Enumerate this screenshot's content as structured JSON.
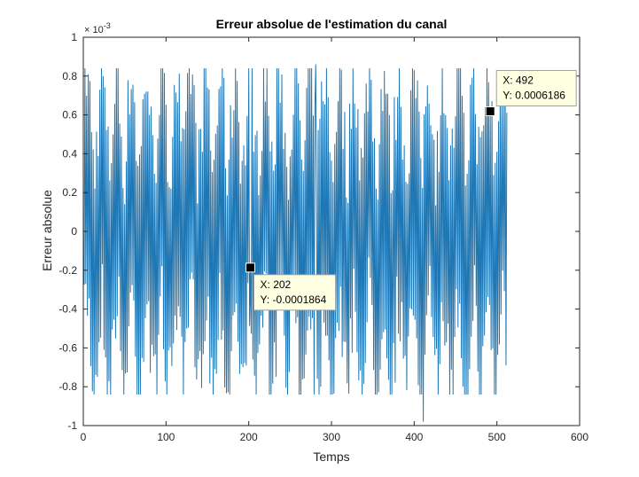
{
  "colors": {
    "line": "#1f77b4",
    "axis": "#262626",
    "tip_bg": "#ffffe1",
    "tip_border": "#a0a0a0",
    "marker": "#000000"
  },
  "chart_data": {
    "type": "line",
    "title": "Erreur absolue de l'estimation du canal",
    "xlabel": "Temps",
    "ylabel": "Erreur absolue",
    "y_exponent_label": "×10^{-3}",
    "y_exponent": {
      "base": "× 10",
      "power": "-3"
    },
    "xlim": [
      0,
      600
    ],
    "ylim": [
      -1,
      1
    ],
    "xticks": [
      0,
      100,
      200,
      300,
      400,
      500,
      600
    ],
    "yticks": [
      -1,
      -0.8,
      -0.6,
      -0.4,
      -0.2,
      0,
      0.2,
      0.4,
      0.6,
      0.8,
      1
    ],
    "xtick_labels": [
      "0",
      "100",
      "200",
      "300",
      "400",
      "500",
      "600"
    ],
    "ytick_labels": [
      "-1",
      "-0.8",
      "-0.6",
      "-0.4",
      "-0.2",
      "0",
      "0.2",
      "0.4",
      "0.6",
      "0.8",
      "1"
    ],
    "grid": false,
    "box": true,
    "series": [
      {
        "x_start": 1,
        "x_end": 512,
        "approx_amplitude": 0.8,
        "min_point": {
          "x": 411,
          "y": -0.98
        },
        "max_point": {
          "x": 281,
          "y": 0.86
        }
      }
    ],
    "data_tips": [
      {
        "x": 202,
        "y": -0.1864,
        "x_label": "X: 202",
        "y_label": "Y: -0.0001864"
      },
      {
        "x": 492,
        "y": 0.6186,
        "x_label": "X: 492",
        "y_label": "Y: 0.0006186"
      }
    ]
  }
}
